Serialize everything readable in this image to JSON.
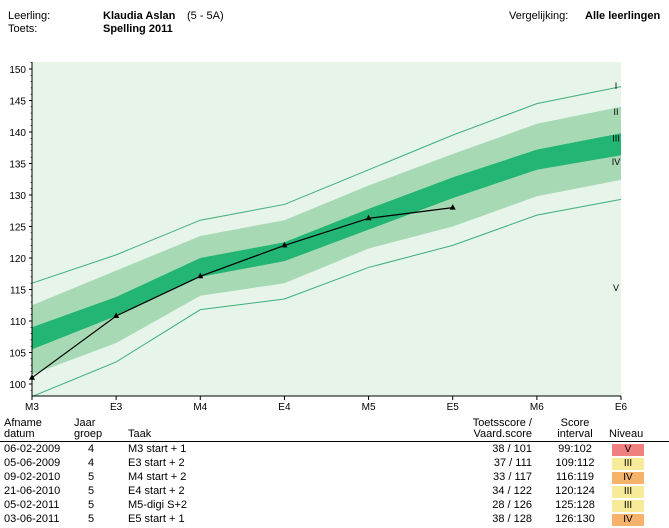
{
  "header": {
    "student_label": "Leerling:",
    "student_name": "Klaudia Aslan",
    "student_group": "(5 - 5A)",
    "test_label": "Toets:",
    "test_name": "Spelling 2011",
    "comparison_label": "Vergelijking:",
    "comparison_value": "Alle leerlingen"
  },
  "chart_data": {
    "type": "line",
    "title": "",
    "xlabel": "",
    "ylabel": "",
    "categories": [
      "M3",
      "E3",
      "M4",
      "E4",
      "M5",
      "E5",
      "M6",
      "E6"
    ],
    "ylim": [
      98,
      151
    ],
    "yticks": [
      100,
      105,
      110,
      115,
      120,
      125,
      130,
      135,
      140,
      145,
      150
    ],
    "level_labels": [
      "I",
      "II",
      "III",
      "IV",
      "V"
    ],
    "bands": {
      "upper_line": [
        116,
        120.5,
        126,
        128.5,
        134,
        139.5,
        144.5,
        147.2
      ],
      "light_top": [
        112.5,
        118,
        123.5,
        126,
        131.5,
        136.5,
        141.3,
        144
      ],
      "dark_top": [
        109,
        113.8,
        120,
        122.5,
        127.8,
        132.8,
        137.2,
        139.8
      ],
      "dark_bottom": [
        105.5,
        110.8,
        117,
        119.5,
        124.5,
        129.5,
        134,
        136.3
      ],
      "light_bottom": [
        101.5,
        106.5,
        114,
        116,
        121.5,
        125,
        129.8,
        132.4
      ],
      "lower_line": [
        98,
        103.5,
        111.8,
        113.5,
        118.5,
        122,
        126.8,
        129.3
      ]
    },
    "series": [
      {
        "name": "",
        "x": [
          0,
          1,
          2,
          3,
          4,
          5
        ],
        "values": [
          101,
          110.8,
          117.1,
          122,
          126.3,
          128
        ]
      }
    ],
    "grid": false,
    "colors": {
      "background": "#e6f4ea",
      "light_band": "#a8d9b5",
      "dark_band": "#22b574",
      "outer_line": "#3fae7a",
      "series": "#000000"
    }
  },
  "table": {
    "headers": {
      "date": "Afname\ndatum",
      "year": "Jaar\ngroep",
      "task": "Taak",
      "score": "Toetsscore /\nVaard.score",
      "interval": "Score\ninterval",
      "level": "Niveau"
    },
    "rows": [
      {
        "date": "06-02-2009",
        "year": "4",
        "task": "M3 start + 1",
        "score": "38 / 101",
        "interval": "99:102",
        "level": "V",
        "level_color": "#f07f7f"
      },
      {
        "date": "05-06-2009",
        "year": "4",
        "task": "E3 start + 2",
        "score": "37 / 111",
        "interval": "109:112",
        "level": "III",
        "level_color": "#f7eb9a"
      },
      {
        "date": "09-02-2010",
        "year": "5",
        "task": "M4 start + 2",
        "score": "33 / 117",
        "interval": "116:119",
        "level": "IV",
        "level_color": "#f5b26b"
      },
      {
        "date": "21-06-2010",
        "year": "5",
        "task": "E4 start + 2",
        "score": "34 / 122",
        "interval": "120:124",
        "level": "III",
        "level_color": "#f7eb9a"
      },
      {
        "date": "05-02-2011",
        "year": "5",
        "task": "M5-digi S+2",
        "score": "28 / 126",
        "interval": "125:128",
        "level": "III",
        "level_color": "#f7eb9a"
      },
      {
        "date": "03-06-2011",
        "year": "5",
        "task": "E5 start + 1",
        "score": "38 / 128",
        "interval": "126:130",
        "level": "IV",
        "level_color": "#f5b26b"
      }
    ]
  }
}
